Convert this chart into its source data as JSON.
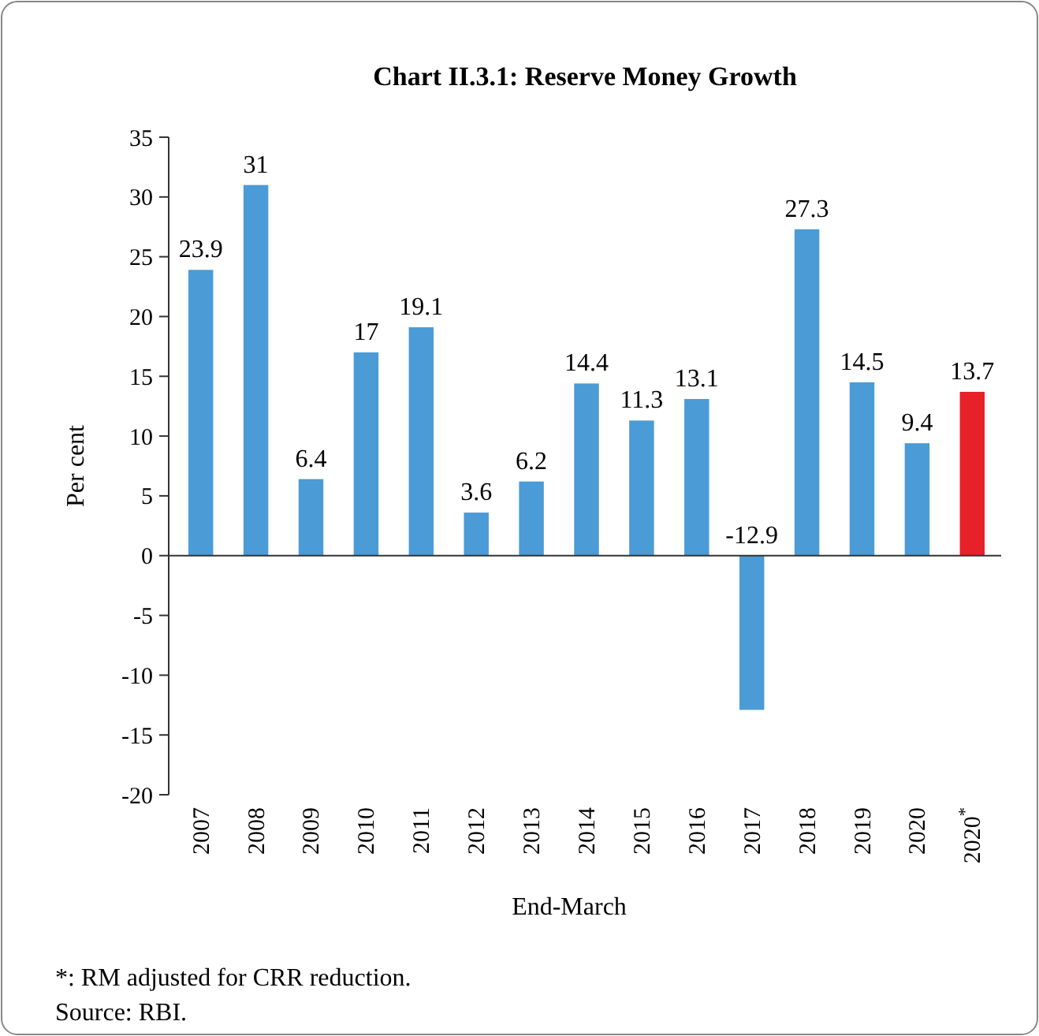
{
  "chart_data": {
    "type": "bar",
    "title": "Chart II.3.1: Reserve Money Growth",
    "xlabel": "End-March",
    "ylabel": "Per cent",
    "categories": [
      "2007",
      "2008",
      "2009",
      "2010",
      "2011",
      "2012",
      "2013",
      "2014",
      "2015",
      "2016",
      "2017",
      "2018",
      "2019",
      "2020",
      "2020$^{*}$"
    ],
    "values": [
      23.9,
      31,
      6.4,
      17,
      19.1,
      3.6,
      6.2,
      14.4,
      11.3,
      13.1,
      -12.9,
      27.3,
      14.5,
      9.4,
      13.7
    ],
    "colors": [
      "#4a9bd6",
      "#4a9bd6",
      "#4a9bd6",
      "#4a9bd6",
      "#4a9bd6",
      "#4a9bd6",
      "#4a9bd6",
      "#4a9bd6",
      "#4a9bd6",
      "#4a9bd6",
      "#4a9bd6",
      "#4a9bd6",
      "#4a9bd6",
      "#4a9bd6",
      "#e8202a"
    ],
    "ylim": [
      -20,
      35
    ],
    "yticks": [
      -20,
      -15,
      -10,
      -5,
      0,
      5,
      10,
      15,
      20,
      25,
      30,
      35
    ],
    "data_labels": true,
    "annotations": [
      "*: RM adjusted for CRR reduction.",
      "Source: RBI."
    ]
  }
}
